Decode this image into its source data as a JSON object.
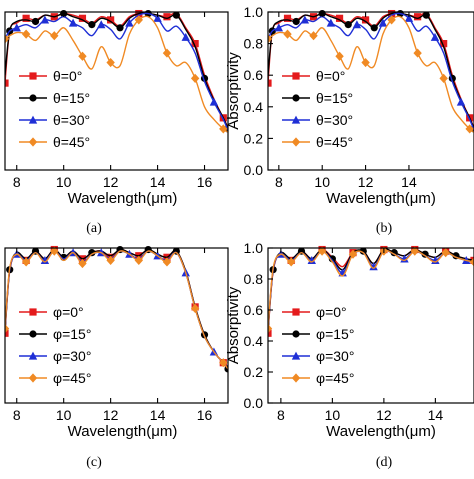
{
  "colors": {
    "series": [
      "#e41a1c",
      "#000000",
      "#1f2fd6",
      "#f08a24"
    ],
    "markers": [
      "square",
      "circle",
      "triangle",
      "diamond"
    ]
  },
  "chart_data": [
    {
      "panel_label": "(a)",
      "type": "line",
      "xlabel": "Wavelength(μm)",
      "ylabel": "",
      "xlim": [
        7.5,
        17
      ],
      "ylim": [
        0,
        1
      ],
      "xticks": [
        8,
        10,
        12,
        14,
        16
      ],
      "xtick_labels": [
        "8",
        "10",
        "12",
        "14",
        "16"
      ],
      "yticks": [],
      "ytick_labels": [],
      "legend": [
        "θ=0°",
        "θ=15°",
        "θ=30°",
        "θ=45°"
      ],
      "legend_position": "center-left",
      "series": [
        {
          "name": "θ=0°",
          "x": [
            7.5,
            7.7,
            8,
            8.4,
            8.8,
            9.2,
            9.6,
            10,
            10.4,
            10.8,
            11.2,
            11.6,
            12,
            12.4,
            12.8,
            13.2,
            13.6,
            14,
            14.4,
            14.8,
            15.2,
            15.6,
            16,
            16.4,
            16.8,
            17
          ],
          "y": [
            0.55,
            0.88,
            0.93,
            0.96,
            0.95,
            0.98,
            0.97,
            0.99,
            0.98,
            0.96,
            0.93,
            0.97,
            0.95,
            0.91,
            0.97,
            0.99,
            0.99,
            0.98,
            0.97,
            0.99,
            0.9,
            0.8,
            0.6,
            0.45,
            0.33,
            0.27
          ]
        },
        {
          "name": "θ=15°",
          "x": [
            7.5,
            7.7,
            8,
            8.4,
            8.8,
            9.2,
            9.6,
            10,
            10.4,
            10.8,
            11.2,
            11.6,
            12,
            12.4,
            12.8,
            13.2,
            13.6,
            14,
            14.4,
            14.8,
            15.2,
            15.6,
            16,
            16.4,
            16.8,
            17
          ],
          "y": [
            0.6,
            0.88,
            0.94,
            0.95,
            0.94,
            0.98,
            0.97,
            0.99,
            0.97,
            0.95,
            0.92,
            0.96,
            0.94,
            0.9,
            0.96,
            0.99,
            0.99,
            0.98,
            0.96,
            0.98,
            0.89,
            0.78,
            0.58,
            0.44,
            0.33,
            0.26
          ]
        },
        {
          "name": "θ=30°",
          "x": [
            7.5,
            7.7,
            8,
            8.4,
            8.8,
            9.2,
            9.6,
            10,
            10.4,
            10.8,
            11.2,
            11.6,
            12,
            12.4,
            12.8,
            13.2,
            13.6,
            14,
            14.4,
            14.8,
            15.2,
            15.6,
            16,
            16.4,
            16.8,
            17
          ],
          "y": [
            0.83,
            0.88,
            0.9,
            0.92,
            0.9,
            0.95,
            0.94,
            0.97,
            0.93,
            0.9,
            0.85,
            0.92,
            0.89,
            0.83,
            0.93,
            0.98,
            0.99,
            0.96,
            0.88,
            0.91,
            0.84,
            0.74,
            0.56,
            0.43,
            0.32,
            0.25
          ]
        },
        {
          "name": "θ=45°",
          "x": [
            7.5,
            7.7,
            8,
            8.4,
            8.8,
            9.2,
            9.6,
            10,
            10.4,
            10.8,
            11.2,
            11.6,
            12,
            12.4,
            12.8,
            13.2,
            13.6,
            14,
            14.4,
            14.8,
            15.2,
            15.6,
            16,
            16.4,
            16.8,
            17
          ],
          "y": [
            0.83,
            0.85,
            0.87,
            0.86,
            0.82,
            0.88,
            0.85,
            0.9,
            0.82,
            0.72,
            0.64,
            0.78,
            0.68,
            0.66,
            0.86,
            0.95,
            0.97,
            0.9,
            0.74,
            0.66,
            0.68,
            0.58,
            0.4,
            0.32,
            0.26,
            0.24
          ]
        }
      ]
    },
    {
      "panel_label": "(b)",
      "type": "line",
      "xlabel": "Wavelength(μm)",
      "ylabel": "Absorptivity",
      "xlim": [
        7.5,
        17
      ],
      "ylim": [
        0,
        1
      ],
      "xticks": [
        8,
        10,
        12,
        14
      ],
      "xtick_labels": [
        "8",
        "10",
        "12",
        "14"
      ],
      "yticks": [
        0,
        0.2,
        0.4,
        0.6,
        0.8,
        1.0
      ],
      "ytick_labels": [
        "0.0",
        "0.2",
        "0.4",
        "0.6",
        "0.8",
        "1.0"
      ],
      "legend": [
        "θ=0°",
        "θ=15°",
        "θ=30°",
        "θ=45°"
      ],
      "legend_position": "center-left",
      "series": [
        {
          "name": "θ=0°",
          "x": [
            7.5,
            7.7,
            8,
            8.4,
            8.8,
            9.2,
            9.6,
            10,
            10.4,
            10.8,
            11.2,
            11.6,
            12,
            12.4,
            12.8,
            13.2,
            13.6,
            14,
            14.4,
            14.8,
            15.2,
            15.6,
            16,
            16.4,
            16.8,
            17
          ],
          "y": [
            0.55,
            0.88,
            0.93,
            0.96,
            0.95,
            0.98,
            0.97,
            0.99,
            0.98,
            0.96,
            0.93,
            0.97,
            0.95,
            0.91,
            0.97,
            0.99,
            0.99,
            0.98,
            0.97,
            0.99,
            0.9,
            0.8,
            0.6,
            0.45,
            0.33,
            0.27
          ]
        },
        {
          "name": "θ=15°",
          "x": [
            7.5,
            7.7,
            8,
            8.4,
            8.8,
            9.2,
            9.6,
            10,
            10.4,
            10.8,
            11.2,
            11.6,
            12,
            12.4,
            12.8,
            13.2,
            13.6,
            14,
            14.4,
            14.8,
            15.2,
            15.6,
            16,
            16.4,
            16.8,
            17
          ],
          "y": [
            0.6,
            0.88,
            0.94,
            0.95,
            0.94,
            0.98,
            0.97,
            0.99,
            0.97,
            0.95,
            0.92,
            0.96,
            0.94,
            0.9,
            0.96,
            0.99,
            0.99,
            0.98,
            0.96,
            0.98,
            0.89,
            0.78,
            0.58,
            0.44,
            0.33,
            0.26
          ]
        },
        {
          "name": "θ=30°",
          "x": [
            7.5,
            7.7,
            8,
            8.4,
            8.8,
            9.2,
            9.6,
            10,
            10.4,
            10.8,
            11.2,
            11.6,
            12,
            12.4,
            12.8,
            13.2,
            13.6,
            14,
            14.4,
            14.8,
            15.2,
            15.6,
            16,
            16.4,
            16.8,
            17
          ],
          "y": [
            0.83,
            0.88,
            0.9,
            0.92,
            0.9,
            0.95,
            0.94,
            0.97,
            0.93,
            0.9,
            0.85,
            0.92,
            0.89,
            0.83,
            0.93,
            0.98,
            0.99,
            0.96,
            0.88,
            0.91,
            0.84,
            0.74,
            0.56,
            0.43,
            0.32,
            0.25
          ]
        },
        {
          "name": "θ=45°",
          "x": [
            7.5,
            7.7,
            8,
            8.4,
            8.8,
            9.2,
            9.6,
            10,
            10.4,
            10.8,
            11.2,
            11.6,
            12,
            12.4,
            12.8,
            13.2,
            13.6,
            14,
            14.4,
            14.8,
            15.2,
            15.6,
            16,
            16.4,
            16.8,
            17
          ],
          "y": [
            0.83,
            0.85,
            0.87,
            0.86,
            0.82,
            0.88,
            0.85,
            0.9,
            0.82,
            0.72,
            0.64,
            0.78,
            0.68,
            0.66,
            0.86,
            0.95,
            0.97,
            0.9,
            0.74,
            0.66,
            0.68,
            0.58,
            0.4,
            0.32,
            0.26,
            0.24
          ]
        }
      ]
    },
    {
      "panel_label": "(c)",
      "type": "line",
      "xlabel": "Wavelength(μm)",
      "ylabel": "",
      "xlim": [
        7.5,
        17
      ],
      "ylim": [
        0,
        1
      ],
      "xticks": [
        8,
        10,
        12,
        14,
        16
      ],
      "xtick_labels": [
        "8",
        "10",
        "12",
        "14",
        "16"
      ],
      "yticks": [],
      "ytick_labels": [],
      "legend": [
        "φ=0°",
        "φ=15°",
        "φ=30°",
        "φ=45°"
      ],
      "legend_position": "center-left",
      "series": [
        {
          "name": "φ=0°",
          "x": [
            7.5,
            7.7,
            8,
            8.4,
            8.8,
            9.2,
            9.6,
            10,
            10.4,
            10.8,
            11.2,
            11.6,
            12,
            12.4,
            12.8,
            13.2,
            13.6,
            14,
            14.4,
            14.8,
            15.2,
            15.6,
            16,
            16.4,
            16.8,
            17
          ],
          "y": [
            0.45,
            0.85,
            0.97,
            0.92,
            0.98,
            0.93,
            0.99,
            0.94,
            0.98,
            0.93,
            0.97,
            0.98,
            0.94,
            0.99,
            0.97,
            0.95,
            0.99,
            0.96,
            0.94,
            0.98,
            0.85,
            0.62,
            0.44,
            0.33,
            0.26,
            0.22
          ]
        },
        {
          "name": "φ=15°",
          "x": [
            7.5,
            7.7,
            8,
            8.4,
            8.8,
            9.2,
            9.6,
            10,
            10.4,
            10.8,
            11.2,
            11.6,
            12,
            12.4,
            12.8,
            13.2,
            13.6,
            14,
            14.4,
            14.8,
            15.2,
            15.6,
            16,
            16.4,
            16.8,
            17
          ],
          "y": [
            0.46,
            0.86,
            0.97,
            0.93,
            0.98,
            0.93,
            0.99,
            0.94,
            0.98,
            0.93,
            0.97,
            0.98,
            0.95,
            0.99,
            0.97,
            0.95,
            0.99,
            0.96,
            0.94,
            0.98,
            0.85,
            0.62,
            0.44,
            0.33,
            0.26,
            0.22
          ]
        },
        {
          "name": "φ=30°",
          "x": [
            7.5,
            7.7,
            8,
            8.4,
            8.8,
            9.2,
            9.6,
            10,
            10.4,
            10.8,
            11.2,
            11.6,
            12,
            12.4,
            12.8,
            13.2,
            13.6,
            14,
            14.4,
            14.8,
            15.2,
            15.6,
            16,
            16.4,
            16.8,
            17
          ],
          "y": [
            0.47,
            0.86,
            0.96,
            0.92,
            0.97,
            0.92,
            0.98,
            0.93,
            0.97,
            0.91,
            0.96,
            0.97,
            0.93,
            0.98,
            0.96,
            0.93,
            0.98,
            0.95,
            0.92,
            0.97,
            0.84,
            0.61,
            0.43,
            0.33,
            0.26,
            0.22
          ]
        },
        {
          "name": "φ=45°",
          "x": [
            7.5,
            7.7,
            8,
            8.4,
            8.8,
            9.2,
            9.6,
            10,
            10.4,
            10.8,
            11.2,
            11.6,
            12,
            12.4,
            12.8,
            13.2,
            13.6,
            14,
            14.4,
            14.8,
            15.2,
            15.6,
            16,
            16.4,
            16.8,
            17
          ],
          "y": [
            0.48,
            0.87,
            0.96,
            0.91,
            0.97,
            0.91,
            0.98,
            0.92,
            0.97,
            0.9,
            0.96,
            0.97,
            0.92,
            0.98,
            0.96,
            0.92,
            0.98,
            0.95,
            0.91,
            0.97,
            0.84,
            0.61,
            0.43,
            0.33,
            0.26,
            0.22
          ]
        }
      ]
    },
    {
      "panel_label": "(d)",
      "type": "line",
      "xlabel": "Wavelength(μm)",
      "ylabel": "Absorptivity",
      "xlim": [
        7.5,
        15.5
      ],
      "ylim": [
        0,
        1
      ],
      "xticks": [
        8,
        10,
        12,
        14
      ],
      "xtick_labels": [
        "8",
        "10",
        "12",
        "14"
      ],
      "yticks": [
        0,
        0.2,
        0.4,
        0.6,
        0.8,
        1.0
      ],
      "ytick_labels": [
        "0.0",
        "0.2",
        "0.4",
        "0.6",
        "0.8",
        "1.0"
      ],
      "legend": [
        "φ=0°",
        "φ=15°",
        "φ=30°",
        "φ=45°"
      ],
      "legend_position": "center-left",
      "series": [
        {
          "name": "φ=0°",
          "x": [
            7.5,
            7.7,
            8,
            8.4,
            8.8,
            9.2,
            9.6,
            10,
            10.4,
            10.8,
            11.2,
            11.6,
            12,
            12.4,
            12.8,
            13.2,
            13.6,
            14,
            14.4,
            14.8,
            15.2,
            15.5
          ],
          "y": [
            0.45,
            0.85,
            0.97,
            0.92,
            0.98,
            0.93,
            0.99,
            0.94,
            0.88,
            0.97,
            0.98,
            0.9,
            0.99,
            0.97,
            0.95,
            0.99,
            0.96,
            0.94,
            0.98,
            0.95,
            0.93,
            0.92
          ]
        },
        {
          "name": "φ=15°",
          "x": [
            7.5,
            7.7,
            8,
            8.4,
            8.8,
            9.2,
            9.6,
            10,
            10.4,
            10.8,
            11.2,
            11.6,
            12,
            12.4,
            12.8,
            13.2,
            13.6,
            14,
            14.4,
            14.8,
            15.2,
            15.5
          ],
          "y": [
            0.46,
            0.86,
            0.97,
            0.93,
            0.98,
            0.93,
            0.99,
            0.93,
            0.86,
            0.97,
            0.98,
            0.9,
            0.99,
            0.97,
            0.95,
            0.99,
            0.96,
            0.94,
            0.98,
            0.95,
            0.93,
            0.92
          ]
        },
        {
          "name": "φ=30°",
          "x": [
            7.5,
            7.7,
            8,
            8.4,
            8.8,
            9.2,
            9.6,
            10,
            10.4,
            10.8,
            11.2,
            11.6,
            12,
            12.4,
            12.8,
            13.2,
            13.6,
            14,
            14.4,
            14.8,
            15.2,
            15.5
          ],
          "y": [
            0.47,
            0.86,
            0.96,
            0.92,
            0.97,
            0.92,
            0.98,
            0.92,
            0.84,
            0.96,
            0.97,
            0.88,
            0.98,
            0.96,
            0.93,
            0.98,
            0.95,
            0.92,
            0.97,
            0.94,
            0.92,
            0.91
          ]
        },
        {
          "name": "φ=45°",
          "x": [
            7.5,
            7.7,
            8,
            8.4,
            8.8,
            9.2,
            9.6,
            10,
            10.4,
            10.8,
            11.2,
            11.6,
            12,
            12.4,
            12.8,
            13.2,
            13.6,
            14,
            14.4,
            14.8,
            15.2,
            15.5
          ],
          "y": [
            0.48,
            0.87,
            0.96,
            0.91,
            0.97,
            0.91,
            0.98,
            0.91,
            0.82,
            0.96,
            0.97,
            0.87,
            0.98,
            0.96,
            0.92,
            0.98,
            0.95,
            0.91,
            0.97,
            0.94,
            0.92,
            0.91
          ]
        }
      ]
    }
  ]
}
